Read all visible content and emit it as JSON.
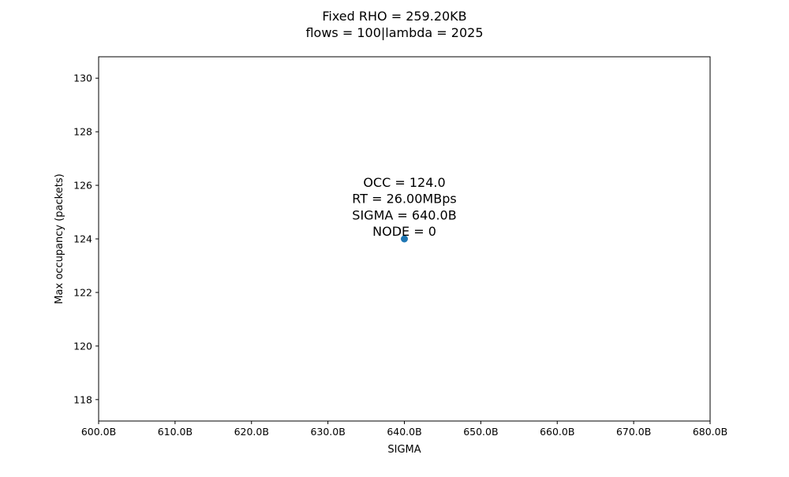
{
  "chart_data": {
    "type": "scatter",
    "title": "Fixed RHO = 259.20KB",
    "subtitle": "flows = 100|lambda = 2025",
    "xlabel": "SIGMA",
    "ylabel": "Max occupancy (packets)",
    "xlim": [
      600,
      680
    ],
    "ylim": [
      117.2,
      130.8
    ],
    "x_ticks": [
      600,
      610,
      620,
      630,
      640,
      650,
      660,
      670,
      680
    ],
    "x_tick_labels": [
      "600.0B",
      "610.0B",
      "620.0B",
      "630.0B",
      "640.0B",
      "650.0B",
      "660.0B",
      "670.0B",
      "680.0B"
    ],
    "y_ticks": [
      118,
      120,
      122,
      124,
      126,
      128,
      130
    ],
    "y_tick_labels": [
      "118",
      "120",
      "122",
      "124",
      "126",
      "128",
      "130"
    ],
    "grid": false,
    "series": [
      {
        "color": "#1f77b4",
        "points": [
          {
            "x": 640,
            "y": 124
          }
        ]
      }
    ],
    "annotations": [
      {
        "x": 640,
        "y": 124,
        "lines": [
          "OCC = 124.0",
          "RT = 26.00MBps",
          "SIGMA = 640.0B",
          "NODE = 0"
        ]
      }
    ]
  }
}
